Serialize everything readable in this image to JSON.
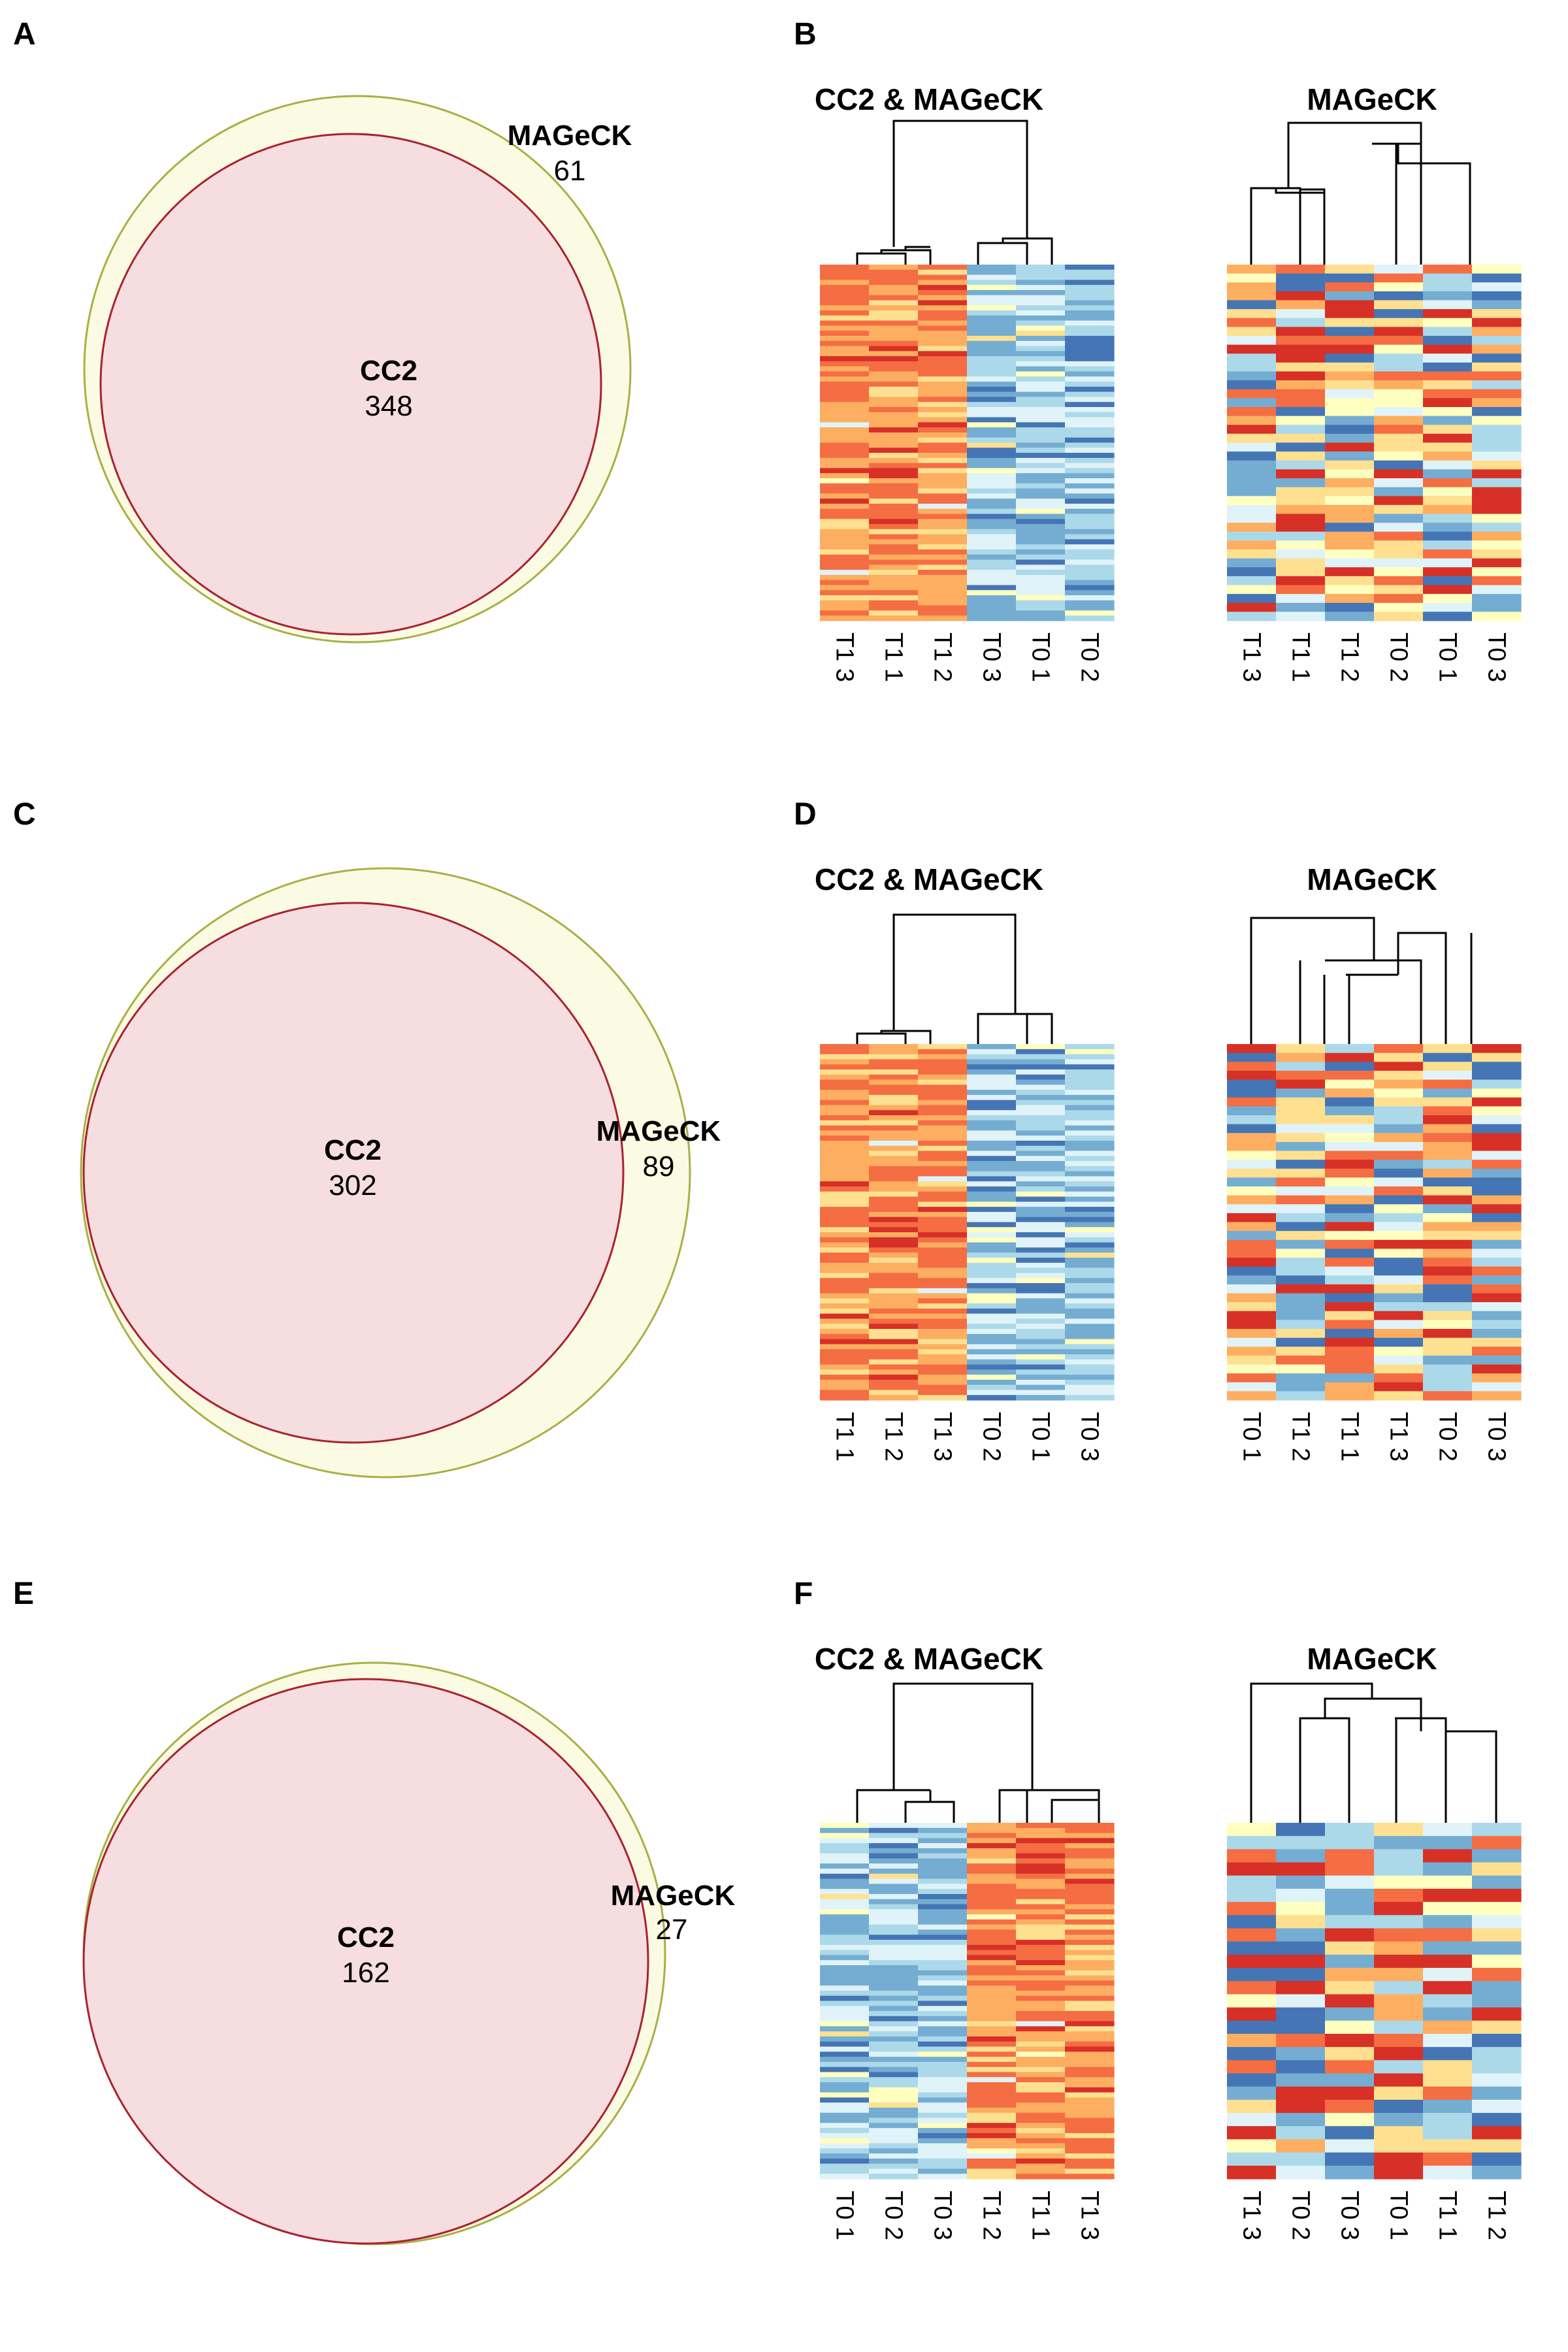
{
  "panels": {
    "A": {
      "label": "A",
      "venn": {
        "big": {
          "name": "MAGeCK",
          "count": "61"
        },
        "small": {
          "name": "CC2",
          "count": "348"
        }
      }
    },
    "B": {
      "label": "B",
      "heatmaps": [
        {
          "title": "CC2 & MAGeCK",
          "columns": [
            "T1 3",
            "T1 1",
            "T1 2",
            "T0 3",
            "T0 1",
            "T0 2"
          ],
          "rows": 70,
          "style": "split",
          "warm": "left"
        },
        {
          "title": "MAGeCK",
          "columns": [
            "T1 3",
            "T1 1",
            "T1 2",
            "T0 2",
            "T0 1",
            "T0 3"
          ],
          "rows": 40,
          "style": "mixed"
        }
      ]
    },
    "C": {
      "label": "C",
      "venn": {
        "big": {
          "name": "MAGeCK",
          "count": "89"
        },
        "small": {
          "name": "CC2",
          "count": "302"
        }
      }
    },
    "D": {
      "label": "D",
      "heatmaps": [
        {
          "title": "CC2 & MAGeCK",
          "columns": [
            "T1 1",
            "T1 2",
            "T1 3",
            "T0 2",
            "T0 1",
            "T0 3"
          ],
          "rows": 70,
          "style": "split",
          "warm": "left"
        },
        {
          "title": "MAGeCK",
          "columns": [
            "T0 1",
            "T1 2",
            "T1 1",
            "T1 3",
            "T0 2",
            "T0 3"
          ],
          "rows": 40,
          "style": "mixed"
        }
      ]
    },
    "E": {
      "label": "E",
      "venn": {
        "big": {
          "name": "MAGeCK",
          "count": "27"
        },
        "small": {
          "name": "CC2",
          "count": "162"
        }
      }
    },
    "F": {
      "label": "F",
      "heatmaps": [
        {
          "title": "CC2 & MAGeCK",
          "columns": [
            "T0 1",
            "T0 2",
            "T0 3",
            "T1 2",
            "T1 1",
            "T1 3"
          ],
          "rows": 70,
          "style": "split",
          "warm": "right"
        },
        {
          "title": "MAGeCK",
          "columns": [
            "T1 3",
            "T0 2",
            "T0 3",
            "T0 1",
            "T1 1",
            "T1 2"
          ],
          "rows": 27,
          "style": "mixed"
        }
      ]
    }
  },
  "colors": {
    "venn_outer_fill": "#fbfbe3",
    "venn_outer_stroke": "#a8b044",
    "venn_inner_fill": "#f6dde0",
    "venn_inner_stroke": "#a8232e",
    "heat_scale": [
      "#4575b4",
      "#74add1",
      "#abd9e9",
      "#e0f3f8",
      "#ffffbf",
      "#fee090",
      "#fdae61",
      "#f46d43",
      "#d73027"
    ]
  }
}
